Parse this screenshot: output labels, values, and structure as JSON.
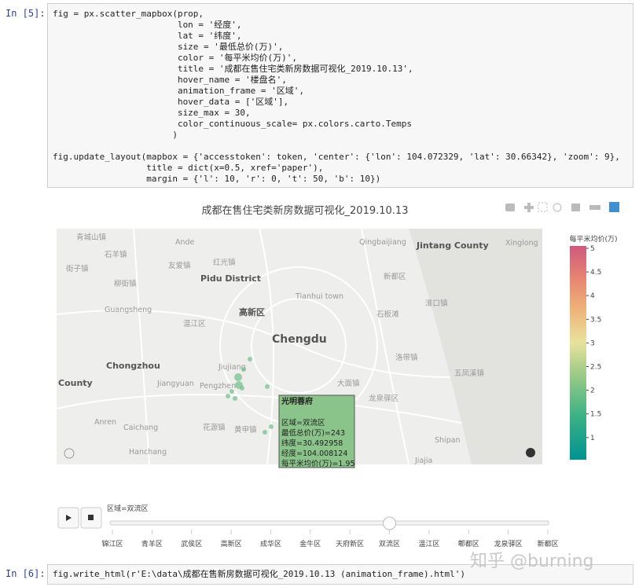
{
  "cells": [
    {
      "prompt": "In  [5]:",
      "lines": [
        "fig = px.scatter_mapbox(prop,",
        "                        lon = '经度',",
        "                        lat = '纬度',",
        "                        size = '最低总价(万)',",
        "                        color = '每平米均价(万)',",
        "                        title = '成都在售住宅类新房数据可视化_2019.10.13',",
        "                        hover_name = '楼盘名',",
        "                        animation_frame = '区域',",
        "                        hover_data = ['区域'],",
        "                        size_max = 30,",
        "                        color_continuous_scale= px.colors.carto.Temps",
        "                       )",
        "",
        "fig.update_layout(mapbox = {'accesstoken': token, 'center': {'lon': 104.072329, 'lat': 30.66342}, 'zoom': 9},",
        "                  title = dict(x=0.5, xref='paper'),",
        "                  margin = {'l': 10, 'r': 0, 't': 50, 'b': 10})"
      ]
    },
    {
      "prompt": "In  [6]:",
      "lines": [
        "fig.write_html(r'E:\\data\\成都在售新房数据可视化_2019.10.13 (animation_frame).html')"
      ]
    }
  ],
  "figure": {
    "title": "成都在售住宅类新房数据可视化_2019.10.13",
    "map_labels": [
      "青城山镇",
      "Ande",
      "Qingbaijiang",
      "Jintang County",
      "Xinglong",
      "石羊镇",
      "友爱镇",
      "红光镇",
      "Pidu District",
      "新都区",
      "街子镇",
      "柳街镇",
      "Tianhui town",
      "淮口镇",
      "Guangsheng",
      "高新区",
      "石板滩",
      "温江区",
      "Chengdu",
      "洛带镇",
      "Chongzhou",
      "Jiujiang",
      "大面镇",
      "龙泉驿区",
      "County",
      "Jiangyuan",
      "Pengzhen",
      "五凤溪镇",
      "Anren",
      "Caichang",
      "花源镇",
      "黄甲镇",
      "Shipan",
      "Hanchang",
      "Jiajia"
    ],
    "colorbar": {
      "title": "每平米均价(万)",
      "ticks": [
        "5",
        "4.5",
        "4",
        "3.5",
        "3",
        "2.5",
        "2",
        "1.5",
        "1"
      ]
    },
    "tooltip": {
      "name": "光明蓉府",
      "lines": [
        "区域=双流区",
        "最低总价(万)=243",
        "纬度=30.492958",
        "经度=104.008124",
        "每平米均价(万)=1.95"
      ]
    },
    "slider": {
      "current": "区域=双流区",
      "steps": [
        "锦江区",
        "青羊区",
        "武侯区",
        "高新区",
        "成华区",
        "金牛区",
        "天府新区",
        "双流区",
        "温江区",
        "郫都区",
        "龙泉驿区",
        "新都区"
      ],
      "active": 7
    }
  },
  "watermark": "知乎 @burning"
}
